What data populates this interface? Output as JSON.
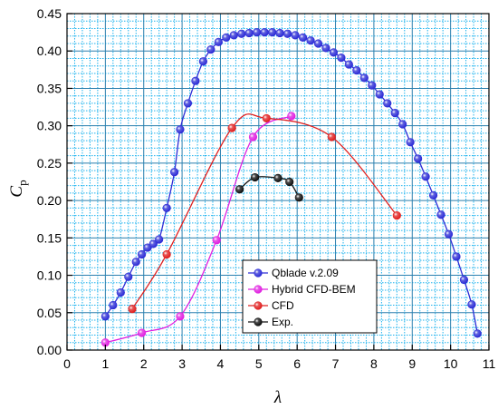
{
  "chart_data": {
    "type": "line",
    "title": "",
    "xlabel": "λ",
    "ylabel": {
      "main": "C",
      "sub": "p"
    },
    "xlim": [
      0,
      11
    ],
    "ylim": [
      0,
      0.45
    ],
    "x_ticks": [
      "0",
      "1",
      "2",
      "3",
      "4",
      "5",
      "6",
      "7",
      "8",
      "9",
      "10",
      "11"
    ],
    "y_ticks": [
      "0.00",
      "0.05",
      "0.10",
      "0.15",
      "0.20",
      "0.25",
      "0.30",
      "0.35",
      "0.40",
      "0.45"
    ],
    "grid": true,
    "legend_position": "bottom-center",
    "series": [
      {
        "name": "Qblade v.2.09",
        "color": "#2d2dd6",
        "x": [
          1.0,
          1.2,
          1.4,
          1.6,
          1.8,
          1.95,
          2.1,
          2.25,
          2.4,
          2.6,
          2.8,
          2.95,
          3.15,
          3.35,
          3.55,
          3.75,
          3.95,
          4.15,
          4.35,
          4.55,
          4.75,
          4.95,
          5.15,
          5.35,
          5.55,
          5.75,
          5.95,
          6.15,
          6.35,
          6.55,
          6.75,
          6.95,
          7.15,
          7.35,
          7.55,
          7.75,
          7.95,
          8.15,
          8.35,
          8.55,
          8.75,
          8.95,
          9.15,
          9.35,
          9.55,
          9.75,
          9.95,
          10.15,
          10.35,
          10.55,
          10.7
        ],
        "y": [
          0.045,
          0.06,
          0.077,
          0.098,
          0.118,
          0.128,
          0.137,
          0.142,
          0.148,
          0.19,
          0.238,
          0.295,
          0.33,
          0.36,
          0.386,
          0.402,
          0.412,
          0.418,
          0.421,
          0.423,
          0.424,
          0.425,
          0.425,
          0.425,
          0.424,
          0.423,
          0.421,
          0.418,
          0.414,
          0.41,
          0.404,
          0.398,
          0.391,
          0.382,
          0.374,
          0.364,
          0.354,
          0.342,
          0.33,
          0.317,
          0.302,
          0.278,
          0.256,
          0.232,
          0.207,
          0.181,
          0.155,
          0.125,
          0.094,
          0.061,
          0.022
        ]
      },
      {
        "name": "Hybrid CFD-BEM",
        "color": "#e021e0",
        "x": [
          1.0,
          1.95,
          2.95,
          3.9,
          4.85,
          5.85
        ],
        "y": [
          0.01,
          0.023,
          0.045,
          0.147,
          0.285,
          0.313
        ]
      },
      {
        "name": "CFD",
        "color": "#e02020",
        "x": [
          1.7,
          2.6,
          4.3,
          5.2,
          6.9,
          8.6
        ],
        "y": [
          0.055,
          0.128,
          0.297,
          0.31,
          0.285,
          0.18
        ]
      },
      {
        "name": "Exp.",
        "color": "#111111",
        "x": [
          4.5,
          4.9,
          5.5,
          5.8,
          6.05
        ],
        "y": [
          0.215,
          0.231,
          0.23,
          0.225,
          0.204
        ]
      }
    ]
  }
}
